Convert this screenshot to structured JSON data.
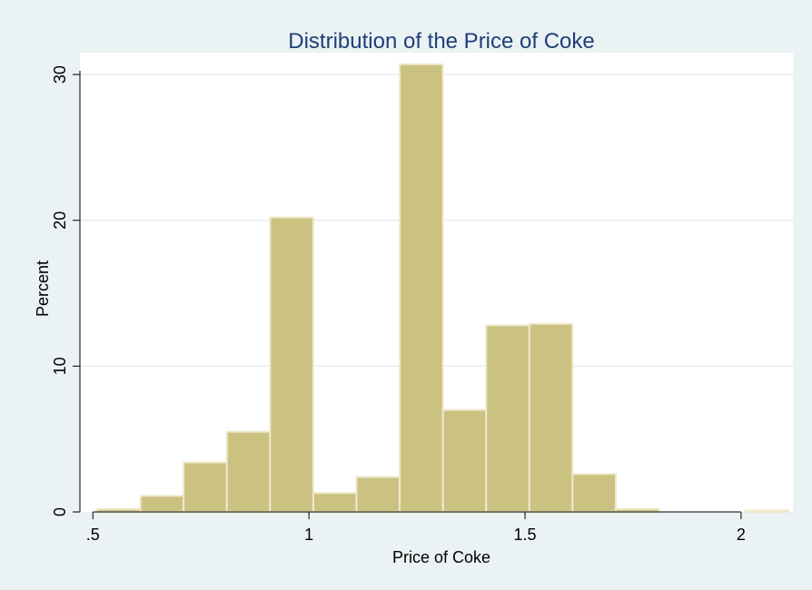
{
  "chart_data": {
    "type": "bar",
    "title": "Distribution of the Price of Coke",
    "xlabel": "Price of Coke",
    "ylabel": "Percent",
    "xlim": [
      0.47,
      2.12
    ],
    "ylim": [
      0,
      31.5
    ],
    "grid": true,
    "x_ticks": [
      {
        "value": 0.5,
        "label": ".5"
      },
      {
        "value": 1,
        "label": "1"
      },
      {
        "value": 1.5,
        "label": "1.5"
      },
      {
        "value": 2,
        "label": "2"
      }
    ],
    "y_ticks": [
      {
        "value": 0,
        "label": "0"
      },
      {
        "value": 10,
        "label": "10"
      },
      {
        "value": 20,
        "label": "20"
      },
      {
        "value": 30,
        "label": "30"
      }
    ],
    "bins": [
      {
        "start": 0.51,
        "end": 0.61,
        "value": 0.2
      },
      {
        "start": 0.61,
        "end": 0.71,
        "value": 1.1
      },
      {
        "start": 0.71,
        "end": 0.81,
        "value": 3.4
      },
      {
        "start": 0.81,
        "end": 0.91,
        "value": 5.5
      },
      {
        "start": 0.91,
        "end": 1.01,
        "value": 20.2
      },
      {
        "start": 1.01,
        "end": 1.11,
        "value": 1.3
      },
      {
        "start": 1.11,
        "end": 1.21,
        "value": 2.4
      },
      {
        "start": 1.21,
        "end": 1.31,
        "value": 30.7
      },
      {
        "start": 1.31,
        "end": 1.41,
        "value": 7.0
      },
      {
        "start": 1.41,
        "end": 1.51,
        "value": 12.8
      },
      {
        "start": 1.51,
        "end": 1.61,
        "value": 12.9
      },
      {
        "start": 1.61,
        "end": 1.71,
        "value": 2.6
      },
      {
        "start": 1.71,
        "end": 1.81,
        "value": 0.2
      },
      {
        "start": 1.81,
        "end": 1.91,
        "value": 0.0
      },
      {
        "start": 1.91,
        "end": 2.01,
        "value": 0.0
      },
      {
        "start": 2.01,
        "end": 2.11,
        "value": 0.1
      }
    ],
    "colors": {
      "background": "#eaf2f3",
      "plot_background": "#ffffff",
      "bar_fill": "#cbc282",
      "bar_stroke": "#efe9cc",
      "grid": "#e6eeee",
      "axis": "#000000",
      "title": "#1f3f7a"
    }
  }
}
